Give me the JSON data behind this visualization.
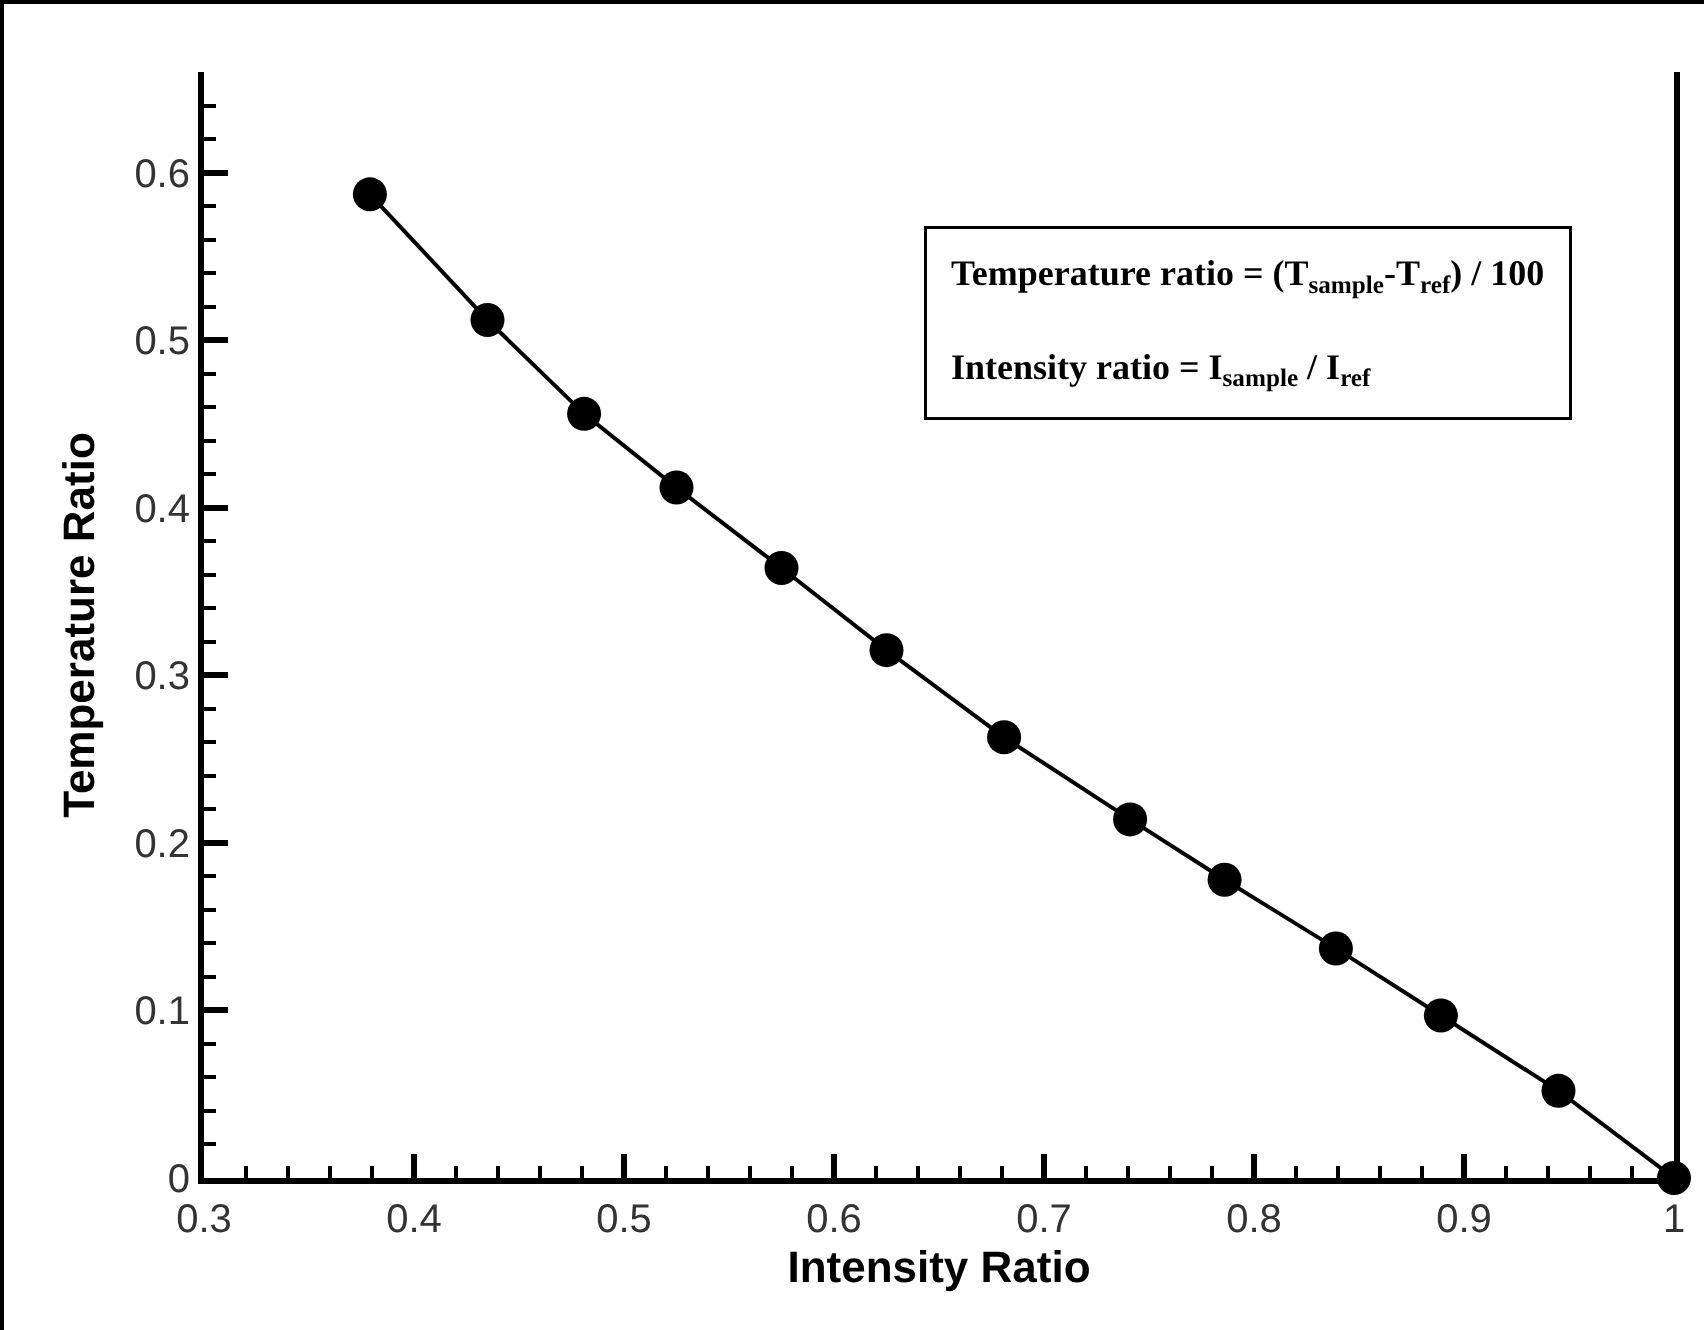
{
  "chart_data": {
    "type": "line",
    "xlabel": "Intensity Ratio",
    "ylabel": "Temperature Ratio",
    "annotations": [
      "Temperature ratio = (T$_{sample}$-T$_{ref}$) / 100",
      "Intensity ratio = I$_{sample}$ / I$_{ref}$"
    ],
    "x": [
      0.379,
      0.435,
      0.481,
      0.525,
      0.575,
      0.625,
      0.681,
      0.741,
      0.786,
      0.839,
      0.889,
      0.945,
      1.0
    ],
    "series": [
      {
        "color": "#000000",
        "values": [
          0.587,
          0.512,
          0.456,
          0.412,
          0.364,
          0.315,
          0.263,
          0.214,
          0.178,
          0.137,
          0.097,
          0.052,
          0
        ]
      }
    ],
    "xlim": [
      0.3,
      1
    ],
    "ylim": [
      0,
      0.66
    ],
    "xticks": [
      0.3,
      0.4,
      0.5,
      0.6,
      0.7,
      0.8,
      0.9,
      1
    ],
    "yticks": [
      0,
      0.1,
      0.2,
      0.3,
      0.4,
      0.5,
      0.6
    ],
    "marker": "circle",
    "line_style": "solid",
    "grid": false
  }
}
